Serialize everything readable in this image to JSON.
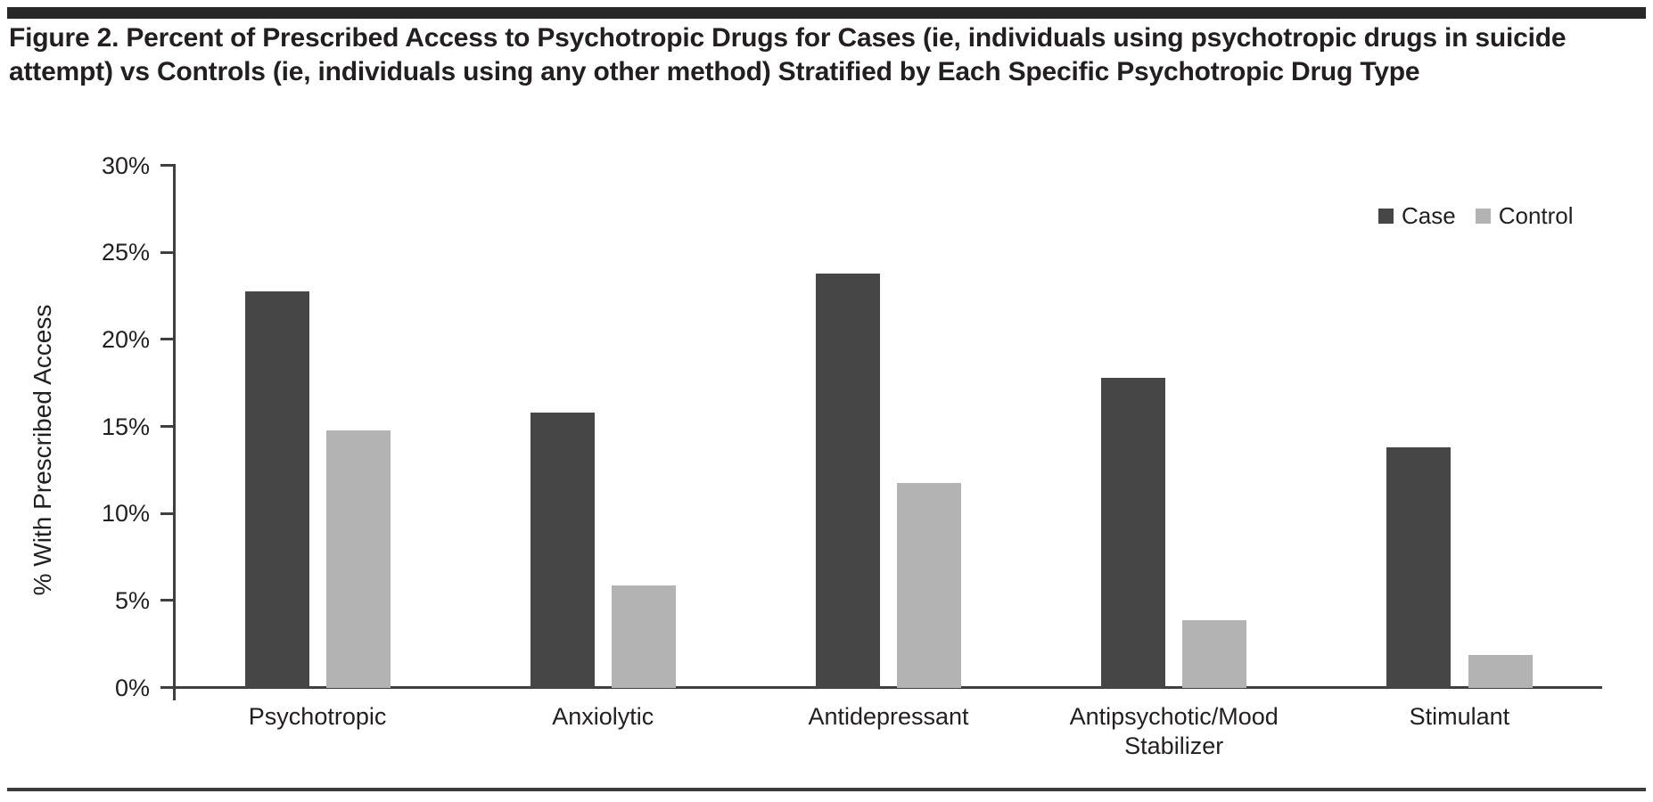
{
  "figure": {
    "title": "Figure 2. Percent of Prescribed Access to Psychotropic Drugs for Cases (ie, individuals using psychotropic drugs in suicide attempt) vs Controls (ie, individuals using any other method) Stratified by Each Specific Psychotropic Drug Type"
  },
  "chart_data": {
    "type": "bar",
    "title": "",
    "xlabel": "",
    "ylabel": "% With Prescribed Access",
    "ylim": [
      0,
      30
    ],
    "ytick_step": 5,
    "yticks": [
      "0%",
      "5%",
      "10%",
      "15%",
      "20%",
      "25%",
      "30%"
    ],
    "grid": false,
    "legend_position": "top-right",
    "categories": [
      "Psychotropic",
      "Anxiolytic",
      "Antidepressant",
      "Antipsychotic/Mood Stabilizer",
      "Stimulant"
    ],
    "series": [
      {
        "name": "Case",
        "color": "#464646",
        "values": [
          22.8,
          15.8,
          23.8,
          17.8,
          13.8
        ]
      },
      {
        "name": "Control",
        "color": "#b3b3b3",
        "values": [
          14.8,
          5.9,
          11.8,
          3.9,
          1.9
        ]
      }
    ],
    "colors": {
      "axis": "#3f3f3f",
      "text": "#231f20"
    }
  }
}
